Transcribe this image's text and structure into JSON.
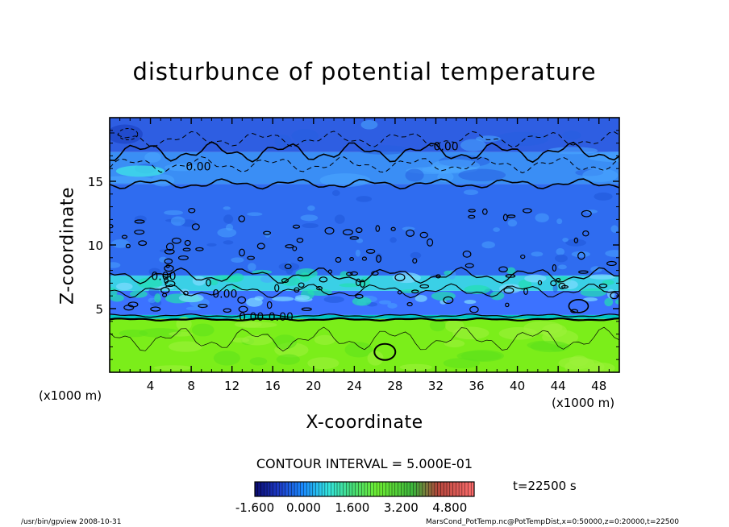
{
  "title": "disturbunce of potential temperature",
  "footer": {
    "program": "/usr/bin/gpview   2008-10-31",
    "source": "MarsCond_PotTemp.nc@PotTempDist,x=0:50000,z=0:20000,t=22500"
  },
  "contour_interval_label": "CONTOUR INTERVAL = 5.000E-01",
  "time_label": "t=22500 s",
  "chart_data": {
    "type": "heatmap",
    "title": "disturbunce of potential temperature",
    "xlabel": "X-coordinate",
    "ylabel": "Z-coordinate",
    "x_unit": "(x1000 m)",
    "z_unit": "(x1000 m)",
    "xlim": [
      0,
      50
    ],
    "ylim": [
      0,
      20
    ],
    "x_ticks": [
      4,
      8,
      12,
      16,
      20,
      24,
      28,
      32,
      36,
      40,
      44,
      48
    ],
    "y_ticks": [
      5,
      10,
      15
    ],
    "contour_interval": 0.5,
    "contour_labels": [
      {
        "x": 33,
        "z": 17.7,
        "text": "0.00"
      },
      {
        "x": 8.7,
        "z": 16.1,
        "text": "0.00"
      },
      {
        "x": 5.3,
        "z": 7.5,
        "text": "0.00"
      },
      {
        "x": 11.3,
        "z": 6.1,
        "text": "0.00"
      },
      {
        "x": 13.9,
        "z": 4.3,
        "text": "0.00"
      },
      {
        "x": 16.8,
        "z": 4.3,
        "text": "0.00"
      }
    ],
    "colorbar": {
      "tick_labels": [
        "-1.600",
        "0.000",
        "1.600",
        "3.200",
        "4.800"
      ],
      "tick_values": [
        -1.6,
        0.0,
        1.6,
        3.2,
        4.8
      ],
      "range": [
        -1.6,
        5.6
      ]
    },
    "field_layers": [
      {
        "z": [
          0,
          4.2
        ],
        "value": 1.2,
        "color": "#7bee1a"
      },
      {
        "z": [
          4.2,
          4.5
        ],
        "value": 0.2,
        "color": "#00c4c4"
      },
      {
        "z": [
          4.5,
          6.4
        ],
        "value": -0.2,
        "color": "#3c72ff"
      },
      {
        "z": [
          6.4,
          7.6
        ],
        "value": 0.05,
        "color": "#3ad0e6"
      },
      {
        "z": [
          7.6,
          14.8
        ],
        "value": -0.2,
        "color": "#2f6cf0"
      },
      {
        "z": [
          14.8,
          17.3
        ],
        "value": -0.05,
        "color": "#3a8ef5"
      },
      {
        "z": [
          17.3,
          20
        ],
        "value": -0.6,
        "color": "#2e5ee2"
      }
    ],
    "colors": {
      "cbar_low": "#0a0a70",
      "cbar_mid_blue": "#1a8cff",
      "cbar_cyan": "#33e5e0",
      "cbar_green": "#66ee33",
      "cbar_high": "#ff6d6d"
    }
  }
}
